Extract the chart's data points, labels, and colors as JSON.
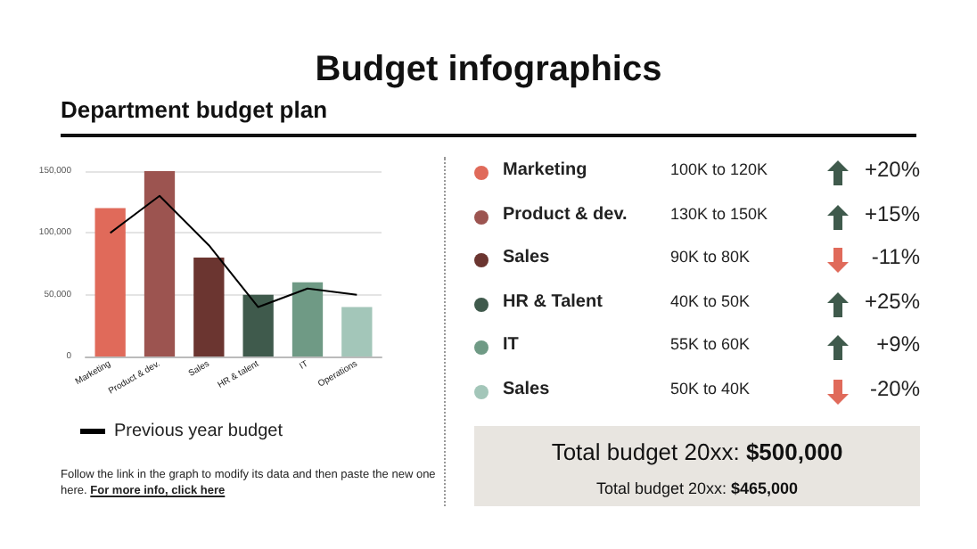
{
  "chart_data": [
    {
      "type": "bar",
      "title": "Budget infographics",
      "subtitle": "Department budget plan",
      "categories": [
        "Marketing",
        "Product & dev.",
        "Sales",
        "HR & talent",
        "IT",
        "Operations"
      ],
      "series": [
        {
          "colors": [
            "#e06a5a",
            "#9c5450",
            "#6b3530",
            "#3f5a4c",
            "#6f9a85",
            "#a3c6b9"
          ],
          "values": [
            120000,
            150000,
            80000,
            50000,
            60000,
            40000
          ]
        },
        {
          "type": "line",
          "name": "Previous year budget",
          "color": "#000000",
          "values": [
            100000,
            130000,
            90000,
            40000,
            55000,
            50000
          ]
        }
      ],
      "ylim": [
        0,
        150000
      ],
      "yticks": [
        0,
        {
          "value": 50000,
          "label": "50,000"
        },
        {
          "value": 100000,
          "label": "100,000"
        },
        {
          "value": 150000,
          "label": "150,000"
        }
      ],
      "grid": "y",
      "legend": "bottom left",
      "marker": "none",
      "annotations": [
        "Follow the link in the graph to modify its data and then paste the new one here.",
        "For more info, click here"
      ]
    },
    {
      "type": "other",
      "categories": [
        "Marketing",
        "Product & dev.",
        "Sales",
        "HR & Talent",
        "IT",
        "Sales"
      ],
      "colors": [
        "#e06a5a",
        "#9c5450",
        "#6b3530",
        "#3f5a4c",
        "#6f9a85",
        "#a3c6b9"
      ],
      "values": [
        20,
        15,
        -11,
        25,
        9,
        -20
      ],
      "value_labels": [
        "+20%",
        "+15%",
        "-11%",
        "+25%",
        "+9%",
        "-20%"
      ],
      "annotations": [
        "100K to 120K",
        "130K to 150K",
        "90K to 80K",
        "40K to 50K",
        "55K to 60K",
        "50K to 40K",
        "Total budget 20xx: $500,000",
        "Total budget 20xx: $465,000"
      ]
    }
  ]
}
